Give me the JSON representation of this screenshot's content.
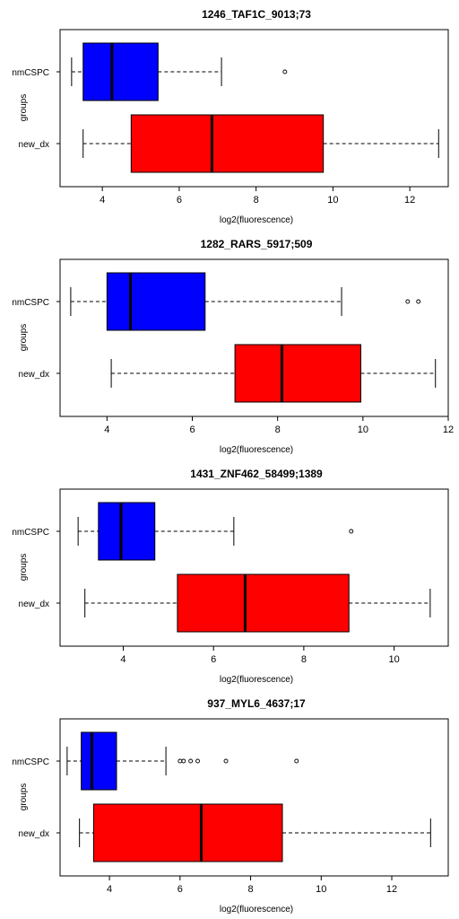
{
  "chart_data": [
    {
      "type": "boxplot",
      "title": "1246_TAF1C_9013;73",
      "xlabel": "log2(fluorescence)",
      "ylabel": "groups",
      "xlim": [
        2.9,
        13.0
      ],
      "xticks": [
        4,
        6,
        8,
        10,
        12
      ],
      "groups": [
        {
          "name": "nmCSPC",
          "color": "#0000ff",
          "whisker_low": 3.2,
          "q1": 3.5,
          "median": 4.25,
          "q3": 5.45,
          "whisker_high": 7.1,
          "outliers": [
            8.75
          ]
        },
        {
          "name": "new_dx",
          "color": "#ff0000",
          "whisker_low": 3.5,
          "q1": 4.75,
          "median": 6.85,
          "q3": 9.75,
          "whisker_high": 12.75,
          "outliers": []
        }
      ]
    },
    {
      "type": "boxplot",
      "title": "1282_RARS_5917;509",
      "xlabel": "log2(fluorescence)",
      "ylabel": "groups",
      "xlim": [
        2.9,
        12.0
      ],
      "xticks": [
        4,
        6,
        8,
        10,
        12
      ],
      "groups": [
        {
          "name": "nmCSPC",
          "color": "#0000ff",
          "whisker_low": 3.15,
          "q1": 4.0,
          "median": 4.55,
          "q3": 6.3,
          "whisker_high": 9.5,
          "outliers": [
            11.05,
            11.3
          ]
        },
        {
          "name": "new_dx",
          "color": "#ff0000",
          "whisker_low": 4.1,
          "q1": 7.0,
          "median": 8.1,
          "q3": 9.95,
          "whisker_high": 11.7,
          "outliers": []
        }
      ]
    },
    {
      "type": "boxplot",
      "title": "1431_ZNF462_58499;1389",
      "xlabel": "log2(fluorescence)",
      "ylabel": "groups",
      "xlim": [
        2.6,
        11.2
      ],
      "xticks": [
        4,
        6,
        8,
        10
      ],
      "groups": [
        {
          "name": "nmCSPC",
          "color": "#0000ff",
          "whisker_low": 3.0,
          "q1": 3.45,
          "median": 3.95,
          "q3": 4.7,
          "whisker_high": 6.45,
          "outliers": [
            9.05
          ]
        },
        {
          "name": "new_dx",
          "color": "#ff0000",
          "whisker_low": 3.15,
          "q1": 5.2,
          "median": 6.7,
          "q3": 9.0,
          "whisker_high": 10.8,
          "outliers": []
        }
      ]
    },
    {
      "type": "boxplot",
      "title": "937_MYL6_4637;17",
      "xlabel": "log2(fluorescence)",
      "ylabel": "groups",
      "xlim": [
        2.6,
        13.6
      ],
      "xticks": [
        4,
        6,
        8,
        10,
        12
      ],
      "groups": [
        {
          "name": "nmCSPC",
          "color": "#0000ff",
          "whisker_low": 2.8,
          "q1": 3.2,
          "median": 3.5,
          "q3": 4.2,
          "whisker_high": 5.6,
          "outliers": [
            6.0,
            6.1,
            6.3,
            6.5,
            7.3,
            9.3
          ]
        },
        {
          "name": "new_dx",
          "color": "#ff0000",
          "whisker_low": 3.15,
          "q1": 3.55,
          "median": 6.6,
          "q3": 8.9,
          "whisker_high": 13.1,
          "outliers": []
        }
      ]
    }
  ]
}
